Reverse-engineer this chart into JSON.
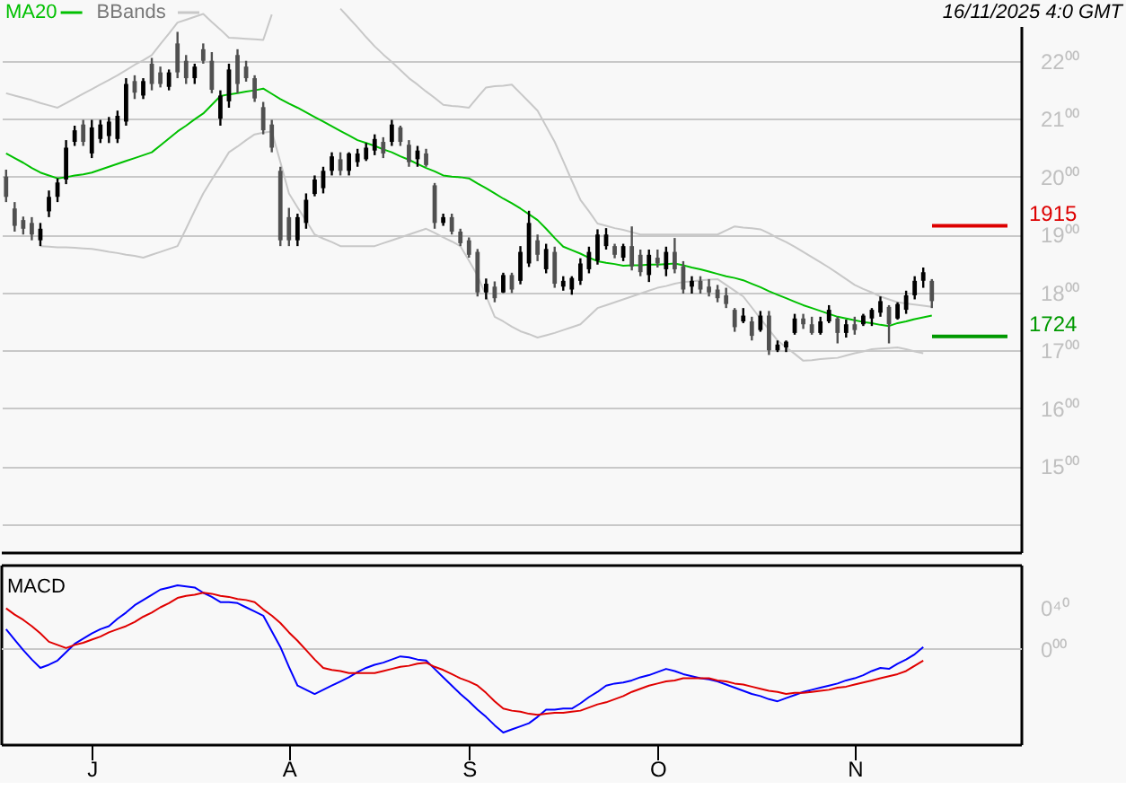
{
  "chart_data": [
    {
      "type": "candlestick",
      "categories": [
        null,
        null,
        null,
        null,
        null,
        null,
        null,
        null,
        null,
        null,
        null,
        null,
        null,
        null,
        null,
        null,
        null,
        null,
        null,
        null,
        null,
        null,
        null,
        null,
        null,
        null,
        null,
        null,
        null,
        null,
        null,
        null,
        null,
        null,
        null,
        null,
        null,
        null,
        null,
        null,
        null,
        null,
        null,
        null,
        null,
        null,
        null,
        null,
        null,
        null,
        null,
        null,
        null,
        null,
        null,
        null,
        null,
        null,
        null,
        null,
        null,
        null,
        null,
        null,
        null,
        null,
        null,
        null,
        null,
        null,
        null,
        null,
        null,
        null,
        null,
        null,
        null,
        null,
        null,
        null,
        null,
        null,
        null,
        null,
        null,
        null,
        null,
        null,
        null,
        null,
        null,
        null,
        null,
        null,
        null,
        null,
        null,
        null,
        null,
        null,
        null,
        null,
        null,
        null,
        null,
        null,
        null,
        null,
        null,
        null,
        null,
        null,
        null,
        null,
        null,
        null,
        null,
        null,
        null
      ],
      "ohlc": [
        [
          20.0,
          20.12,
          19.56,
          19.65
        ],
        [
          19.45,
          19.56,
          19.05,
          19.15
        ],
        [
          19.25,
          19.31,
          19.0,
          19.1
        ],
        [
          19.2,
          19.3,
          18.9,
          19.0
        ],
        [
          18.9,
          19.2,
          18.8,
          19.1
        ],
        [
          19.4,
          19.76,
          19.3,
          19.65
        ],
        [
          19.65,
          19.97,
          19.56,
          19.9
        ],
        [
          19.95,
          20.63,
          19.87,
          20.5
        ],
        [
          20.6,
          20.88,
          20.53,
          20.8
        ],
        [
          20.9,
          20.98,
          20.53,
          20.6
        ],
        [
          20.4,
          20.98,
          20.32,
          20.85
        ],
        [
          20.65,
          20.98,
          20.58,
          20.9
        ],
        [
          20.7,
          21.03,
          20.58,
          20.95
        ],
        [
          20.65,
          21.14,
          20.58,
          21.05
        ],
        [
          20.95,
          21.7,
          20.88,
          21.6
        ],
        [
          21.65,
          21.75,
          21.34,
          21.45
        ],
        [
          21.4,
          21.7,
          21.34,
          21.65
        ],
        [
          21.95,
          22.05,
          21.49,
          21.6
        ],
        [
          21.8,
          21.9,
          21.54,
          21.6
        ],
        [
          21.55,
          21.85,
          21.49,
          21.8
        ],
        [
          22.3,
          22.5,
          21.7,
          21.8
        ],
        [
          22.0,
          22.1,
          21.6,
          21.7
        ],
        [
          21.7,
          21.95,
          21.6,
          21.9
        ],
        [
          22.2,
          22.3,
          21.95,
          22.0
        ],
        [
          22.0,
          22.15,
          21.44,
          21.5
        ],
        [
          21.0,
          21.49,
          20.88,
          21.4
        ],
        [
          21.3,
          21.95,
          21.19,
          21.85
        ],
        [
          22.1,
          22.2,
          21.44,
          21.6
        ],
        [
          21.9,
          22.0,
          21.64,
          21.7
        ],
        [
          21.7,
          21.75,
          21.29,
          21.35
        ],
        [
          21.2,
          21.29,
          20.73,
          20.8
        ],
        [
          20.9,
          20.98,
          20.42,
          20.5
        ],
        [
          20.1,
          20.17,
          18.8,
          18.9
        ],
        [
          19.3,
          19.46,
          18.8,
          18.9
        ],
        [
          18.9,
          19.36,
          18.8,
          19.3
        ],
        [
          19.2,
          19.71,
          19.1,
          19.6
        ],
        [
          19.7,
          20.02,
          19.66,
          19.95
        ],
        [
          19.8,
          20.17,
          19.71,
          20.1
        ],
        [
          20.1,
          20.42,
          20.02,
          20.35
        ],
        [
          20.3,
          20.42,
          20.02,
          20.1
        ],
        [
          20.1,
          20.42,
          20.02,
          20.4
        ],
        [
          20.25,
          20.48,
          20.17,
          20.4
        ],
        [
          20.3,
          20.58,
          20.27,
          20.5
        ],
        [
          20.45,
          20.73,
          20.37,
          20.65
        ],
        [
          20.6,
          20.68,
          20.32,
          20.4
        ],
        [
          20.6,
          20.98,
          20.53,
          20.9
        ],
        [
          20.85,
          20.88,
          20.53,
          20.6
        ],
        [
          20.55,
          20.63,
          20.17,
          20.25
        ],
        [
          20.3,
          20.53,
          20.17,
          20.45
        ],
        [
          20.4,
          20.48,
          20.17,
          20.2
        ],
        [
          19.85,
          19.89,
          19.1,
          19.2
        ],
        [
          19.2,
          19.36,
          19.15,
          19.3
        ],
        [
          19.3,
          19.36,
          19.0,
          19.05
        ],
        [
          19.05,
          19.1,
          18.8,
          18.85
        ],
        [
          18.9,
          18.95,
          18.6,
          18.65
        ],
        [
          18.7,
          18.75,
          17.93,
          18.0
        ],
        [
          18.0,
          18.24,
          17.88,
          18.15
        ],
        [
          18.1,
          18.19,
          17.83,
          17.9
        ],
        [
          18.0,
          18.34,
          17.99,
          18.3
        ],
        [
          18.3,
          18.34,
          17.99,
          18.05
        ],
        [
          18.2,
          18.8,
          18.14,
          18.7
        ],
        [
          18.5,
          19.41,
          18.44,
          19.2
        ],
        [
          18.9,
          19.0,
          18.54,
          18.65
        ],
        [
          18.4,
          18.84,
          18.33,
          18.75
        ],
        [
          18.7,
          18.79,
          18.08,
          18.15
        ],
        [
          18.1,
          18.28,
          18.03,
          18.2
        ],
        [
          18.05,
          18.28,
          17.96,
          18.25
        ],
        [
          18.2,
          18.59,
          18.13,
          18.5
        ],
        [
          18.4,
          18.79,
          18.33,
          18.7
        ],
        [
          18.55,
          19.09,
          18.48,
          19.0
        ],
        [
          18.8,
          19.11,
          18.74,
          19.0
        ],
        [
          18.8,
          18.84,
          18.59,
          18.65
        ],
        [
          18.6,
          18.84,
          18.54,
          18.8
        ],
        [
          18.8,
          19.14,
          18.38,
          18.45
        ],
        [
          18.65,
          18.74,
          18.28,
          18.35
        ],
        [
          18.3,
          18.74,
          18.18,
          18.65
        ],
        [
          18.6,
          18.74,
          18.43,
          18.5
        ],
        [
          18.4,
          18.79,
          18.28,
          18.7
        ],
        [
          18.7,
          18.94,
          18.33,
          18.4
        ],
        [
          18.45,
          18.54,
          17.98,
          18.05
        ],
        [
          18.1,
          18.28,
          17.98,
          18.2
        ],
        [
          18.2,
          18.28,
          17.98,
          18.05
        ],
        [
          18.1,
          18.23,
          17.93,
          18.0
        ],
        [
          18.05,
          18.13,
          17.83,
          17.9
        ],
        [
          17.95,
          18.08,
          17.73,
          17.8
        ],
        [
          17.7,
          17.73,
          17.32,
          17.4
        ],
        [
          17.5,
          17.73,
          17.47,
          17.6
        ],
        [
          17.5,
          17.58,
          17.17,
          17.25
        ],
        [
          17.35,
          17.68,
          17.32,
          17.6
        ],
        [
          17.6,
          17.68,
          16.92,
          17.0
        ],
        [
          17.0,
          17.17,
          16.97,
          17.1
        ],
        [
          17.05,
          17.17,
          16.97,
          17.15
        ],
        [
          17.3,
          17.63,
          17.27,
          17.55
        ],
        [
          17.55,
          17.63,
          17.37,
          17.45
        ],
        [
          17.45,
          17.58,
          17.27,
          17.3
        ],
        [
          17.3,
          17.58,
          17.27,
          17.5
        ],
        [
          17.5,
          17.78,
          17.47,
          17.7
        ],
        [
          17.55,
          17.58,
          17.12,
          17.3
        ],
        [
          17.3,
          17.53,
          17.22,
          17.45
        ],
        [
          17.45,
          17.58,
          17.27,
          17.35
        ],
        [
          17.45,
          17.63,
          17.42,
          17.6
        ],
        [
          17.55,
          17.73,
          17.42,
          17.7
        ],
        [
          17.65,
          17.93,
          17.58,
          17.85
        ],
        [
          17.75,
          17.78,
          17.12,
          17.45
        ],
        [
          17.55,
          17.83,
          17.53,
          17.8
        ],
        [
          17.7,
          18.03,
          17.63,
          17.95
        ],
        [
          17.95,
          18.28,
          17.88,
          18.2
        ],
        [
          18.2,
          18.43,
          18.08,
          18.35
        ],
        [
          18.2,
          18.23,
          17.73,
          17.85
        ],
        null,
        null,
        null,
        null,
        null,
        null,
        null,
        null,
        null,
        null
      ],
      "series": [
        {
          "name": "MA20",
          "type": "line",
          "color": "#00c000",
          "values": [
            20.4,
            20.32,
            20.24,
            20.15,
            20.07,
            20.02,
            19.97,
            19.99,
            20.02,
            20.04,
            20.07,
            20.12,
            20.17,
            20.22,
            20.27,
            20.32,
            20.37,
            20.42,
            20.54,
            20.66,
            20.78,
            20.88,
            20.99,
            21.09,
            21.24,
            21.39,
            21.42,
            21.44,
            21.47,
            21.49,
            21.52,
            21.43,
            21.34,
            21.26,
            21.19,
            21.11,
            21.03,
            20.95,
            20.87,
            20.79,
            20.71,
            20.63,
            20.58,
            20.53,
            20.47,
            20.42,
            20.35,
            20.29,
            20.22,
            20.15,
            20.09,
            20.02,
            20.0,
            19.99,
            19.97,
            19.88,
            19.8,
            19.71,
            19.62,
            19.54,
            19.45,
            19.35,
            19.25,
            19.1,
            18.94,
            18.79,
            18.73,
            18.67,
            18.6,
            18.54,
            18.51,
            18.49,
            18.46,
            18.47,
            18.47,
            18.48,
            18.48,
            18.49,
            18.5,
            18.47,
            18.43,
            18.4,
            18.36,
            18.32,
            18.28,
            18.25,
            18.21,
            18.15,
            18.09,
            18.02,
            17.96,
            17.9,
            17.84,
            17.78,
            17.73,
            17.68,
            17.63,
            17.58,
            17.55,
            17.52,
            17.49,
            17.47,
            17.44,
            17.42,
            17.47,
            17.5,
            17.54,
            17.57,
            17.6,
            null,
            null,
            null,
            null,
            null,
            null,
            null,
            null,
            null,
            null
          ]
        },
        {
          "name": "BBands",
          "type": "line",
          "color": "#c8c8c8",
          "values": [
            21.44,
            21.4,
            21.36,
            21.32,
            21.27,
            21.23,
            21.19,
            21.27,
            21.35,
            21.43,
            21.51,
            21.59,
            21.67,
            21.75,
            21.84,
            21.93,
            22.01,
            22.1,
            22.29,
            22.47,
            22.66,
            22.71,
            22.76,
            22.81,
            22.67,
            22.54,
            22.4,
            22.39,
            22.38,
            22.37,
            22.36,
            22.8,
            null,
            null,
            null,
            null,
            null,
            null,
            null,
            22.9,
            22.74,
            22.58,
            22.41,
            22.25,
            22.11,
            21.98,
            21.84,
            21.7,
            21.59,
            21.47,
            21.36,
            21.24,
            21.22,
            21.21,
            21.19,
            21.37,
            21.54,
            21.56,
            21.57,
            21.59,
            21.44,
            21.29,
            21.14,
            20.87,
            20.6,
            20.27,
            19.93,
            19.6,
            19.4,
            19.19,
            19.15,
            19.11,
            19.08,
            19.04,
            19.0,
            19.0,
            19.0,
            19.0,
            19.0,
            19.0,
            19.0,
            19.0,
            19.0,
            19.0,
            19.07,
            19.14,
            19.12,
            19.11,
            19.09,
            19.02,
            18.94,
            18.87,
            18.79,
            18.7,
            18.61,
            18.52,
            18.43,
            18.33,
            18.23,
            18.13,
            18.06,
            18.0,
            17.93,
            17.88,
            17.83,
            17.81,
            17.79,
            17.77,
            17.75,
            null,
            null,
            null,
            null,
            null,
            null,
            null,
            null,
            null,
            null
          ]
        },
        {
          "type": "line",
          "color": "#c8c8c8",
          "values": [
            null,
            null,
            null,
            null,
            18.8,
            18.79,
            18.78,
            18.78,
            18.77,
            18.76,
            18.75,
            18.73,
            18.7,
            18.68,
            18.65,
            18.63,
            18.6,
            18.65,
            18.7,
            18.75,
            18.8,
            19.1,
            19.41,
            19.71,
            19.95,
            20.18,
            20.42,
            20.52,
            20.63,
            20.73,
            20.76,
            20.78,
            20.25,
            19.71,
            19.47,
            19.24,
            19.0,
            18.93,
            18.87,
            18.8,
            18.8,
            18.8,
            18.8,
            18.8,
            18.85,
            18.9,
            18.95,
            19.0,
            19.05,
            19.1,
            19.03,
            18.95,
            18.88,
            18.8,
            18.55,
            18.29,
            17.94,
            17.58,
            17.5,
            17.41,
            17.33,
            17.28,
            17.22,
            17.26,
            17.3,
            17.35,
            17.4,
            17.45,
            17.59,
            17.73,
            17.78,
            17.83,
            17.88,
            17.93,
            17.98,
            18.03,
            18.08,
            18.11,
            18.15,
            18.18,
            18.19,
            18.21,
            18.22,
            18.23,
            18.13,
            18.03,
            17.93,
            17.74,
            17.55,
            17.36,
            17.17,
            17.05,
            16.94,
            16.82,
            16.83,
            16.85,
            16.86,
            16.87,
            16.91,
            16.95,
            16.98,
            17.02,
            17.03,
            17.04,
            17.05,
            17.02,
            16.98,
            16.95,
            null,
            null,
            null,
            null,
            null,
            null,
            null,
            null,
            null,
            null,
            null
          ]
        }
      ],
      "ylim": [
        13.5,
        23.05
      ],
      "yticks": [
        {
          "value": 14,
          "label": null
        },
        {
          "value": 15,
          "label": "15⁰⁰"
        },
        {
          "value": 16,
          "label": "16⁰⁰"
        },
        {
          "value": 17,
          "label": "17⁰⁰"
        },
        {
          "value": 18,
          "label": "18⁰⁰"
        },
        {
          "value": 19,
          "label": "19⁰⁰"
        },
        {
          "value": 20,
          "label": "20⁰⁰"
        },
        {
          "value": 21,
          "label": "21⁰⁰"
        },
        {
          "value": 22,
          "label": "22⁰⁰"
        }
      ],
      "grid": "y",
      "legend": "top left",
      "tick_labels": "y",
      "ref_lines": [
        {
          "axis": "y",
          "value": 19.15,
          "label": "1915",
          "color": "#dd0000"
        },
        {
          "axis": "y",
          "value": 17.24,
          "label": "1724",
          "color": "#009900"
        }
      ],
      "annotations": [
        "16/11/2025 4:0 GMT"
      ]
    },
    {
      "type": "line",
      "categories": [
        null,
        null,
        null,
        null,
        null,
        null,
        null,
        null,
        null,
        null,
        "J",
        null,
        null,
        null,
        null,
        null,
        null,
        null,
        null,
        null,
        null,
        null,
        null,
        null,
        null,
        null,
        null,
        null,
        null,
        null,
        null,
        null,
        null,
        "A",
        null,
        null,
        null,
        null,
        null,
        null,
        null,
        null,
        null,
        null,
        null,
        null,
        null,
        null,
        null,
        null,
        null,
        null,
        null,
        null,
        "S",
        null,
        null,
        null,
        null,
        null,
        null,
        null,
        null,
        null,
        null,
        null,
        null,
        null,
        null,
        null,
        null,
        null,
        null,
        null,
        null,
        null,
        "O",
        null,
        null,
        null,
        null,
        null,
        null,
        null,
        null,
        null,
        null,
        null,
        null,
        null,
        null,
        null,
        null,
        null,
        null,
        null,
        null,
        null,
        null,
        "N",
        null,
        null,
        null,
        null,
        null,
        null,
        null,
        null,
        null,
        null,
        null,
        null,
        null,
        null,
        null,
        null,
        null,
        null,
        null
      ],
      "series": [
        {
          "color": "#0000ff",
          "values": [
            0.19,
            0.09,
            -0.01,
            -0.1,
            -0.18,
            -0.15,
            -0.11,
            -0.03,
            0.05,
            0.1,
            0.15,
            0.19,
            0.22,
            0.29,
            0.35,
            0.42,
            0.47,
            0.52,
            0.57,
            0.59,
            0.61,
            0.6,
            0.59,
            0.54,
            0.5,
            0.45,
            0.45,
            0.44,
            0.4,
            0.36,
            0.32,
            0.17,
            0.02,
            -0.17,
            -0.35,
            -0.39,
            -0.43,
            -0.39,
            -0.35,
            -0.31,
            -0.27,
            -0.22,
            -0.18,
            -0.15,
            -0.13,
            -0.1,
            -0.07,
            -0.08,
            -0.1,
            -0.11,
            -0.19,
            -0.27,
            -0.35,
            -0.43,
            -0.5,
            -0.58,
            -0.65,
            -0.73,
            -0.8,
            -0.77,
            -0.74,
            -0.71,
            -0.65,
            -0.58,
            -0.58,
            -0.57,
            -0.57,
            -0.52,
            -0.46,
            -0.41,
            -0.35,
            -0.33,
            -0.32,
            -0.3,
            -0.27,
            -0.25,
            -0.22,
            -0.19,
            -0.21,
            -0.24,
            -0.26,
            -0.28,
            -0.29,
            -0.31,
            -0.34,
            -0.37,
            -0.4,
            -0.43,
            -0.45,
            -0.48,
            -0.5,
            -0.47,
            -0.44,
            -0.41,
            -0.39,
            -0.37,
            -0.35,
            -0.33,
            -0.3,
            -0.28,
            -0.25,
            -0.21,
            -0.18,
            -0.19,
            -0.14,
            -0.1,
            -0.05,
            0.02,
            null,
            null,
            null,
            null,
            null,
            null,
            null,
            null,
            null,
            null,
            null
          ]
        },
        {
          "color": "#e00000",
          "values": [
            0.39,
            0.33,
            0.28,
            0.22,
            0.15,
            0.07,
            0.04,
            0.01,
            0.04,
            0.06,
            0.09,
            0.12,
            0.16,
            0.19,
            0.22,
            0.26,
            0.31,
            0.35,
            0.4,
            0.44,
            0.49,
            0.51,
            0.52,
            0.54,
            0.53,
            0.51,
            0.5,
            0.48,
            0.47,
            0.45,
            0.38,
            0.32,
            0.25,
            0.16,
            0.08,
            -0.01,
            -0.1,
            -0.18,
            -0.2,
            -0.21,
            -0.23,
            -0.23,
            -0.23,
            -0.23,
            -0.21,
            -0.19,
            -0.17,
            -0.16,
            -0.14,
            -0.13,
            -0.17,
            -0.2,
            -0.24,
            -0.28,
            -0.31,
            -0.35,
            -0.42,
            -0.5,
            -0.57,
            -0.59,
            -0.6,
            -0.62,
            -0.63,
            -0.62,
            -0.61,
            -0.61,
            -0.6,
            -0.59,
            -0.56,
            -0.53,
            -0.51,
            -0.48,
            -0.45,
            -0.41,
            -0.38,
            -0.35,
            -0.33,
            -0.31,
            -0.3,
            -0.28,
            -0.28,
            -0.28,
            -0.28,
            -0.3,
            -0.31,
            -0.33,
            -0.34,
            -0.36,
            -0.38,
            -0.4,
            -0.41,
            -0.43,
            -0.42,
            -0.42,
            -0.41,
            -0.4,
            -0.39,
            -0.37,
            -0.36,
            -0.34,
            -0.32,
            -0.3,
            -0.28,
            -0.26,
            -0.24,
            -0.21,
            -0.16,
            -0.11,
            null,
            null,
            null,
            null,
            null,
            null,
            null,
            null,
            null,
            null,
            null
          ]
        }
      ],
      "ylim": [
        -0.92,
        0.8
      ],
      "yticks": [
        {
          "value": 0,
          "label": "0⁰⁰"
        },
        {
          "value": 0.4,
          "label": "0⁴⁰"
        }
      ],
      "ref_lines": [
        {
          "axis": "y",
          "value": 0,
          "color": "#c8c8c8"
        }
      ],
      "annotations": [
        "MACD"
      ]
    }
  ]
}
